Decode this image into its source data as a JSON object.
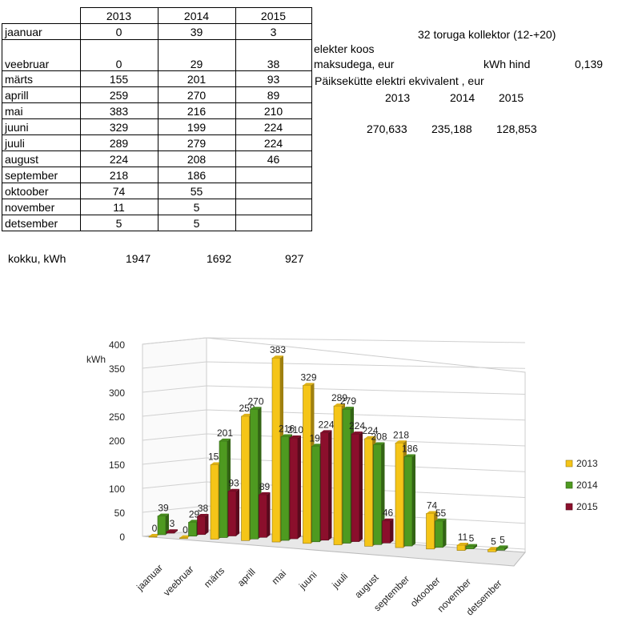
{
  "table": {
    "years": [
      "2013",
      "2014",
      "2015"
    ],
    "rows": [
      {
        "month": "jaanuar",
        "v": [
          "0",
          "39",
          "3"
        ]
      },
      {
        "month": "veebruar",
        "v": [
          "0",
          "29",
          "38"
        ]
      },
      {
        "month": "märts",
        "v": [
          "155",
          "201",
          "93"
        ]
      },
      {
        "month": "aprill",
        "v": [
          "259",
          "270",
          "89"
        ]
      },
      {
        "month": "mai",
        "v": [
          "383",
          "216",
          "210"
        ]
      },
      {
        "month": "juuni",
        "v": [
          "329",
          "199",
          "224"
        ]
      },
      {
        "month": "juuli",
        "v": [
          "289",
          "279",
          "224"
        ]
      },
      {
        "month": "august",
        "v": [
          "224",
          "208",
          "46"
        ]
      },
      {
        "month": "september",
        "v": [
          "218",
          "186",
          ""
        ]
      },
      {
        "month": "oktoober",
        "v": [
          "74",
          "55",
          ""
        ]
      },
      {
        "month": "november",
        "v": [
          "11",
          "5",
          ""
        ]
      },
      {
        "month": "detsember",
        "v": [
          "5",
          "5",
          ""
        ]
      }
    ],
    "total_label": "kokku, kWh",
    "totals": [
      "1947",
      "1692",
      "927"
    ]
  },
  "info": {
    "collector": "32 toruga kollektor (12-+20)",
    "elekter_line1": "elekter koos",
    "elekter_line2": "maksudega, eur",
    "kwh_label": "kWh hind",
    "kwh_value": "0,139",
    "equiv_label": "Päiksekütte elektri ekvivalent , eur",
    "years": [
      "2013",
      "2014",
      "2015"
    ],
    "values": [
      "270,633",
      "235,188",
      "128,853"
    ]
  },
  "chart_data": {
    "type": "bar",
    "ylabel": "kWh",
    "ylim": [
      0,
      400
    ],
    "yticks": [
      "0",
      "50",
      "100",
      "150",
      "200",
      "250",
      "300",
      "350",
      "400"
    ],
    "categories": [
      "jaanuar",
      "veebruar",
      "märts",
      "aprill",
      "mai",
      "juuni",
      "juuli",
      "august",
      "september",
      "oktoober",
      "november",
      "detsember"
    ],
    "series": [
      {
        "name": "2013",
        "color": "#f5c518",
        "values": [
          0,
          0,
          155,
          259,
          383,
          329,
          289,
          224,
          218,
          74,
          11,
          5
        ],
        "labels": [
          "0",
          "0",
          "155",
          "259",
          "383",
          "329",
          "289",
          "224",
          "218",
          "74",
          "11",
          "5"
        ]
      },
      {
        "name": "2014",
        "color": "#4e9a20",
        "values": [
          39,
          29,
          201,
          270,
          216,
          199,
          279,
          208,
          186,
          55,
          5,
          5
        ],
        "labels": [
          "39",
          "29",
          "201",
          "270",
          "216",
          "199",
          "279",
          "208",
          "186",
          "55",
          "5",
          "5"
        ]
      },
      {
        "name": "2015",
        "color": "#8b0f2c",
        "values": [
          3,
          38,
          93,
          89,
          210,
          224,
          224,
          46,
          null,
          null,
          null,
          null
        ],
        "labels": [
          "3",
          "38",
          "93",
          "89",
          "210",
          "224",
          "224",
          "46",
          "",
          "",
          "",
          ""
        ]
      }
    ],
    "legend_position": "right",
    "grid": true
  }
}
